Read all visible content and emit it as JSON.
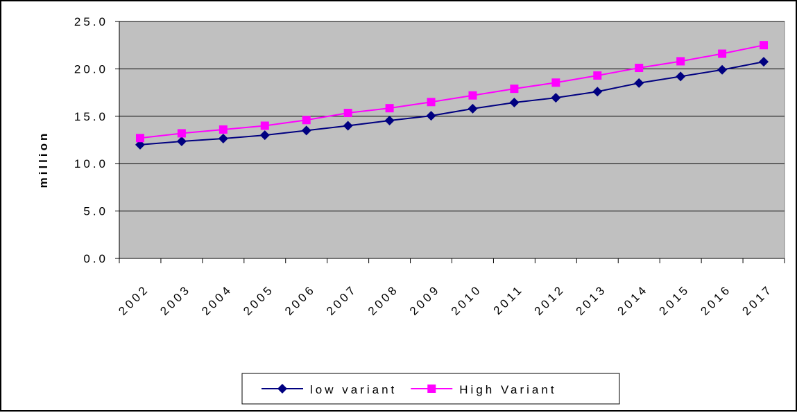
{
  "chart_data": {
    "type": "line",
    "y_label": "million",
    "categories": [
      "2002",
      "2003",
      "2004",
      "2005",
      "2006",
      "2007",
      "2008",
      "2009",
      "2010",
      "2011",
      "2012",
      "2013",
      "2014",
      "2015",
      "2016",
      "2017"
    ],
    "series": [
      {
        "name": "low variant",
        "color": "#000080",
        "marker": "diamond",
        "values": [
          12.0,
          12.35,
          12.65,
          13.0,
          13.5,
          14.0,
          14.55,
          15.05,
          15.8,
          16.45,
          16.95,
          17.6,
          18.5,
          19.2,
          19.9,
          20.75
        ]
      },
      {
        "name": "High Variant",
        "color": "#ff00ff",
        "marker": "square",
        "values": [
          12.7,
          13.2,
          13.6,
          14.0,
          14.6,
          15.35,
          15.85,
          16.5,
          17.2,
          17.9,
          18.55,
          19.3,
          20.1,
          20.8,
          21.6,
          22.5
        ]
      }
    ],
    "ylim": [
      0,
      25
    ],
    "yticks": [
      {
        "value": 0,
        "label": "0.0"
      },
      {
        "value": 5,
        "label": "5.0"
      },
      {
        "value": 10,
        "label": "10.0"
      },
      {
        "value": 15,
        "label": "15.0"
      },
      {
        "value": 20,
        "label": "20.0"
      },
      {
        "value": 25,
        "label": "25.0"
      }
    ],
    "grid": true,
    "plot_background": "#c0c0c0",
    "legend": "bottom"
  }
}
